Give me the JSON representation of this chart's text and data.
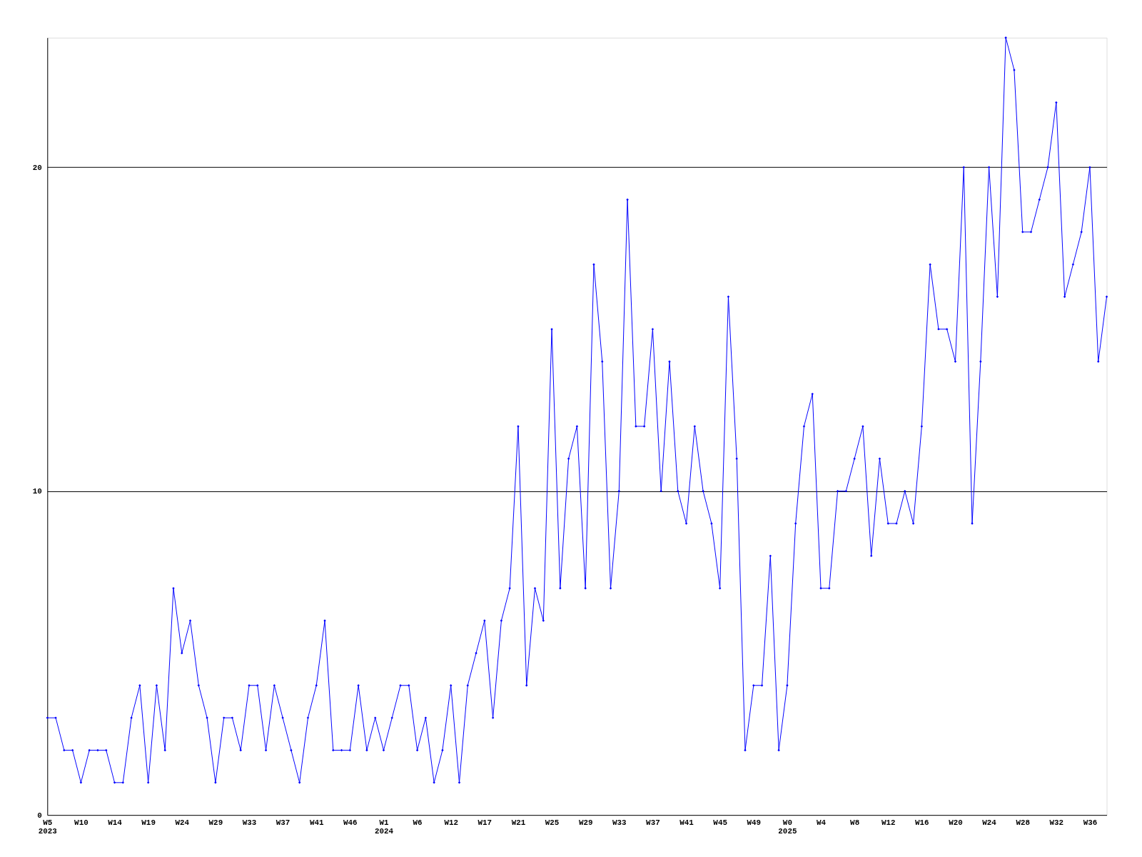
{
  "chart_data": {
    "type": "line",
    "categories": [
      "W5\n2023",
      null,
      null,
      null,
      "W10",
      null,
      null,
      null,
      "W14",
      null,
      null,
      null,
      "W19",
      null,
      null,
      null,
      "W24",
      null,
      null,
      null,
      "W29",
      null,
      null,
      null,
      "W33",
      null,
      null,
      null,
      "W37",
      null,
      null,
      null,
      "W41",
      null,
      null,
      null,
      "W46",
      null,
      null,
      null,
      "W1\n2024",
      null,
      null,
      null,
      "W6",
      null,
      null,
      null,
      "W12",
      null,
      null,
      null,
      "W17",
      null,
      null,
      null,
      "W21",
      null,
      null,
      null,
      "W25",
      null,
      null,
      null,
      "W29",
      null,
      null,
      null,
      "W33",
      null,
      null,
      null,
      "W37",
      null,
      null,
      null,
      "W41",
      null,
      null,
      null,
      "W45",
      null,
      null,
      null,
      "W49",
      null,
      null,
      null,
      "W0\n2025",
      null,
      null,
      null,
      "W4",
      null,
      null,
      null,
      "W8",
      null,
      null,
      null,
      "W12",
      null,
      null,
      null,
      "W16",
      null,
      null,
      null,
      "W20",
      null,
      null,
      null,
      "W24",
      null,
      null,
      null,
      "W28",
      null,
      null,
      null,
      "W32",
      null,
      null,
      null,
      "W36",
      null,
      null
    ],
    "series": [
      {
        "color": "#0000ff",
        "values": [
          3,
          3,
          2,
          2,
          1,
          2,
          2,
          2,
          1,
          1,
          3,
          4,
          1,
          4,
          2,
          7,
          5,
          6,
          4,
          3,
          1,
          3,
          3,
          2,
          4,
          4,
          2,
          4,
          3,
          2,
          1,
          3,
          4,
          6,
          2,
          2,
          2,
          4,
          2,
          3,
          2,
          3,
          4,
          4,
          2,
          3,
          1,
          2,
          4,
          1,
          4,
          5,
          6,
          3,
          6,
          7,
          12,
          4,
          7,
          6,
          15,
          7,
          11,
          12,
          7,
          17,
          14,
          7,
          10,
          19,
          12,
          12,
          15,
          10,
          14,
          10,
          9,
          12,
          10,
          9,
          7,
          16,
          11,
          2,
          4,
          4,
          8,
          2,
          4,
          9,
          12,
          13,
          7,
          7,
          10,
          10,
          11,
          12,
          8,
          11,
          9,
          9,
          10,
          9,
          12,
          17,
          15,
          15,
          14,
          20,
          9,
          14,
          20,
          16,
          24,
          23,
          18,
          18,
          19,
          20,
          22,
          16,
          17,
          18,
          20,
          14,
          16
        ]
      }
    ],
    "ylim": [
      0,
      24
    ],
    "yticks": [
      0,
      10,
      20
    ],
    "grid": "y",
    "marker": "diamond",
    "line_style": "solid"
  }
}
